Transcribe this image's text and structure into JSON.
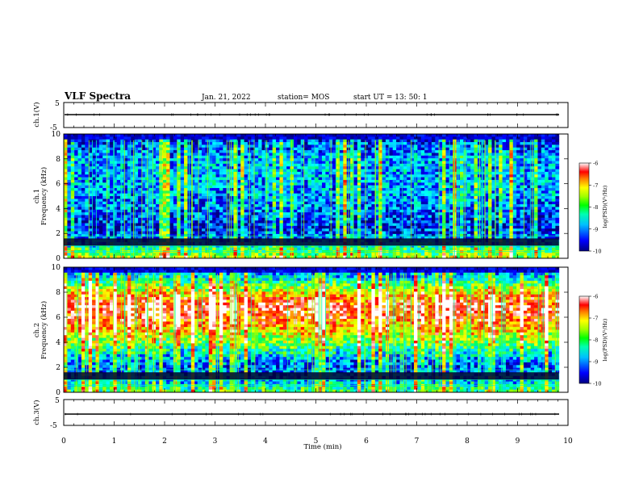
{
  "header": {
    "title": "VLF Spectra",
    "date": "Jan. 21, 2022",
    "station": "station= MOS",
    "start_ut": "start  UT  =   13: 50: 1"
  },
  "chart_data": [
    {
      "type": "line",
      "name": "ch1-waveform",
      "ylabel": "ch.1(V)",
      "ylim": [
        -5,
        5
      ],
      "yticks": [
        "5",
        "-5"
      ],
      "xlim": [
        0,
        10
      ],
      "level": 0
    },
    {
      "type": "heatmap",
      "name": "ch1-spectrogram",
      "ylabel": "ch.1\nFrequency  (kHz)",
      "ylabel_line1": "ch.1",
      "ylabel_line2": "Frequency  (kHz)",
      "ylim": [
        0,
        10
      ],
      "yticks": [
        "0",
        "2",
        "4",
        "6",
        "8",
        "10"
      ],
      "xlim": [
        0,
        10
      ],
      "end_time_min": 9.82,
      "colorbar": {
        "label": "log(PSD)(V²/Hz)",
        "range": [
          -10,
          -6
        ],
        "ticks": [
          "-6",
          "-7",
          "-8",
          "-9",
          "-10"
        ]
      },
      "band_intensity_profile_kHz": [
        [
          0,
          0.55
        ],
        [
          0.8,
          0.35
        ],
        [
          1.6,
          0.15
        ],
        [
          2.5,
          0.05
        ],
        [
          4,
          0.15
        ],
        [
          6,
          0.2
        ],
        [
          8,
          0.2
        ],
        [
          9.2,
          0.1
        ],
        [
          10,
          0.0
        ]
      ]
    },
    {
      "type": "heatmap",
      "name": "ch2-spectrogram",
      "ylabel": "ch.2\nFrequency  (kHz)",
      "ylabel_line1": "ch.2",
      "ylabel_line2": "Frequency  (kHz)",
      "ylim": [
        0,
        10
      ],
      "yticks": [
        "0",
        "2",
        "4",
        "6",
        "8",
        "10"
      ],
      "xlim": [
        0,
        10
      ],
      "end_time_min": 9.82,
      "colorbar": {
        "label": "log(PSD)(V²/Hz)",
        "range": [
          -10,
          -6
        ],
        "ticks": [
          "-6",
          "-7",
          "-8",
          "-9",
          "-10"
        ]
      },
      "band_intensity_profile_kHz": [
        [
          0,
          0.4
        ],
        [
          1,
          0.2
        ],
        [
          2,
          0.1
        ],
        [
          3,
          0.25
        ],
        [
          4.5,
          0.55
        ],
        [
          6,
          0.8
        ],
        [
          7,
          0.85
        ],
        [
          8,
          0.6
        ],
        [
          9,
          0.3
        ],
        [
          10,
          0.05
        ]
      ]
    },
    {
      "type": "line",
      "name": "ch3-waveform",
      "ylabel": "ch.3(V)",
      "ylim": [
        -5,
        5
      ],
      "yticks": [
        "5",
        "-5"
      ],
      "xlim": [
        0,
        10
      ],
      "level": 0,
      "xlabel": "Time  (min)",
      "xticks": [
        "0",
        "1",
        "2",
        "3",
        "4",
        "5",
        "6",
        "7",
        "8",
        "9",
        "10"
      ]
    }
  ],
  "colors": {
    "colormap": [
      "#00007f",
      "#0000ff",
      "#00a0ff",
      "#00ffff",
      "#00ff60",
      "#a0ff00",
      "#ffff00",
      "#ff8000",
      "#ff0000",
      "#ffffff"
    ],
    "line": "#000000"
  }
}
